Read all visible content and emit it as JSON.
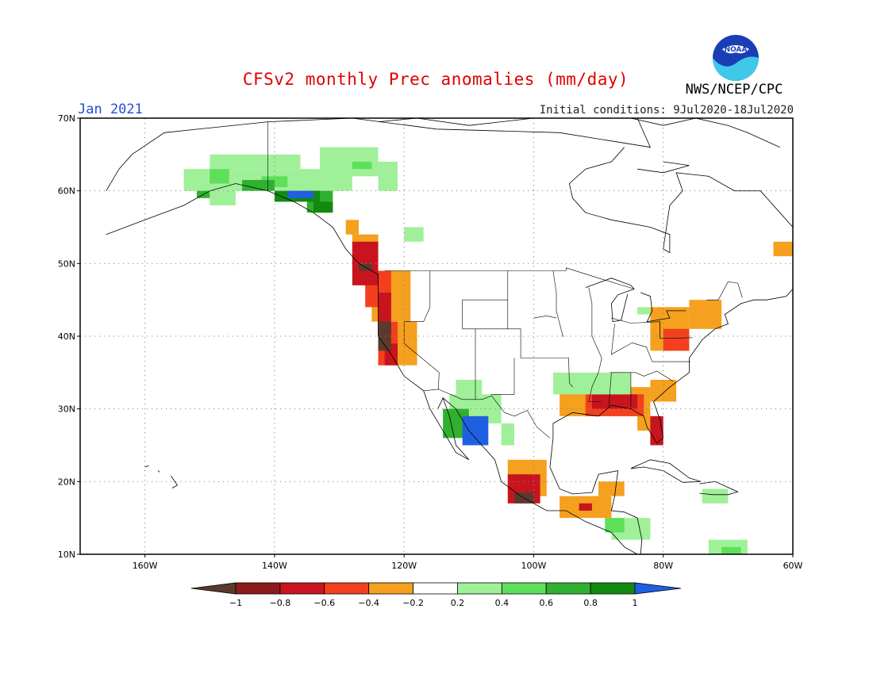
{
  "header": {
    "title": "CFSv2 monthly Prec anomalies (mm/day)",
    "month_label": "Jan 2021",
    "initial_conditions": "Initial conditions: 9Jul2020-18Jul2020",
    "agency": "NWS/NCEP/CPC",
    "logo_text": "NOAA"
  },
  "map": {
    "projection": "lat-lon",
    "lon_range": [
      -170,
      -60
    ],
    "lat_range": [
      10,
      70
    ],
    "grid": true,
    "lat_ticks": [
      "10N",
      "20N",
      "30N",
      "40N",
      "50N",
      "60N",
      "70N"
    ],
    "lon_ticks": [
      "160W",
      "140W",
      "120W",
      "100W",
      "80W",
      "60W"
    ],
    "regions": [
      {
        "name": "Alaska interior",
        "category": "0.2-0.4",
        "lon": [
          -154,
          -125
        ],
        "lat": [
          59,
          65
        ]
      },
      {
        "name": "Southeast Alaska coast",
        "category": "0.8-1",
        "lon": [
          -140,
          -131
        ],
        "lat": [
          57,
          60
        ]
      },
      {
        "name": "Pacific Northwest coast",
        "category": "-0.8--0.6",
        "lon": [
          -128,
          -121
        ],
        "lat": [
          44,
          52
        ]
      },
      {
        "name": "Northern California coast",
        "category": "<-1",
        "lon": [
          -124,
          -121
        ],
        "lat": [
          38,
          42
        ]
      },
      {
        "name": "Northwest Mexico",
        "category": ">1",
        "lon": [
          -111,
          -106
        ],
        "lat": [
          25,
          30
        ]
      },
      {
        "name": "Gulf Coast",
        "category": "-0.8--0.6",
        "lon": [
          -93,
          -82
        ],
        "lat": [
          27,
          32
        ]
      },
      {
        "name": "Florida peninsula",
        "category": "-0.8--0.6",
        "lon": [
          -83,
          -80
        ],
        "lat": [
          25,
          29
        ]
      },
      {
        "name": "Southwest Mexico",
        "category": "<-1",
        "lon": [
          -104,
          -98
        ],
        "lat": [
          17,
          22
        ]
      },
      {
        "name": "Northeast US",
        "category": "-0.4--0.2",
        "lon": [
          -80,
          -70
        ],
        "lat": [
          38,
          45
        ]
      }
    ]
  },
  "colorbar": {
    "labels": [
      "-1",
      "-0.8",
      "-0.6",
      "-0.4",
      "-0.2",
      "0.2",
      "0.4",
      "0.6",
      "0.8",
      "1"
    ],
    "colors": [
      "#8b1a1a",
      "#c8141e",
      "#f2401e",
      "#f5a01e",
      "#ffffff",
      "#a0f09a",
      "#5ee05a",
      "#30b030",
      "#128a12"
    ],
    "under_color": "#5a3a2e",
    "over_color": "#2060e0"
  }
}
